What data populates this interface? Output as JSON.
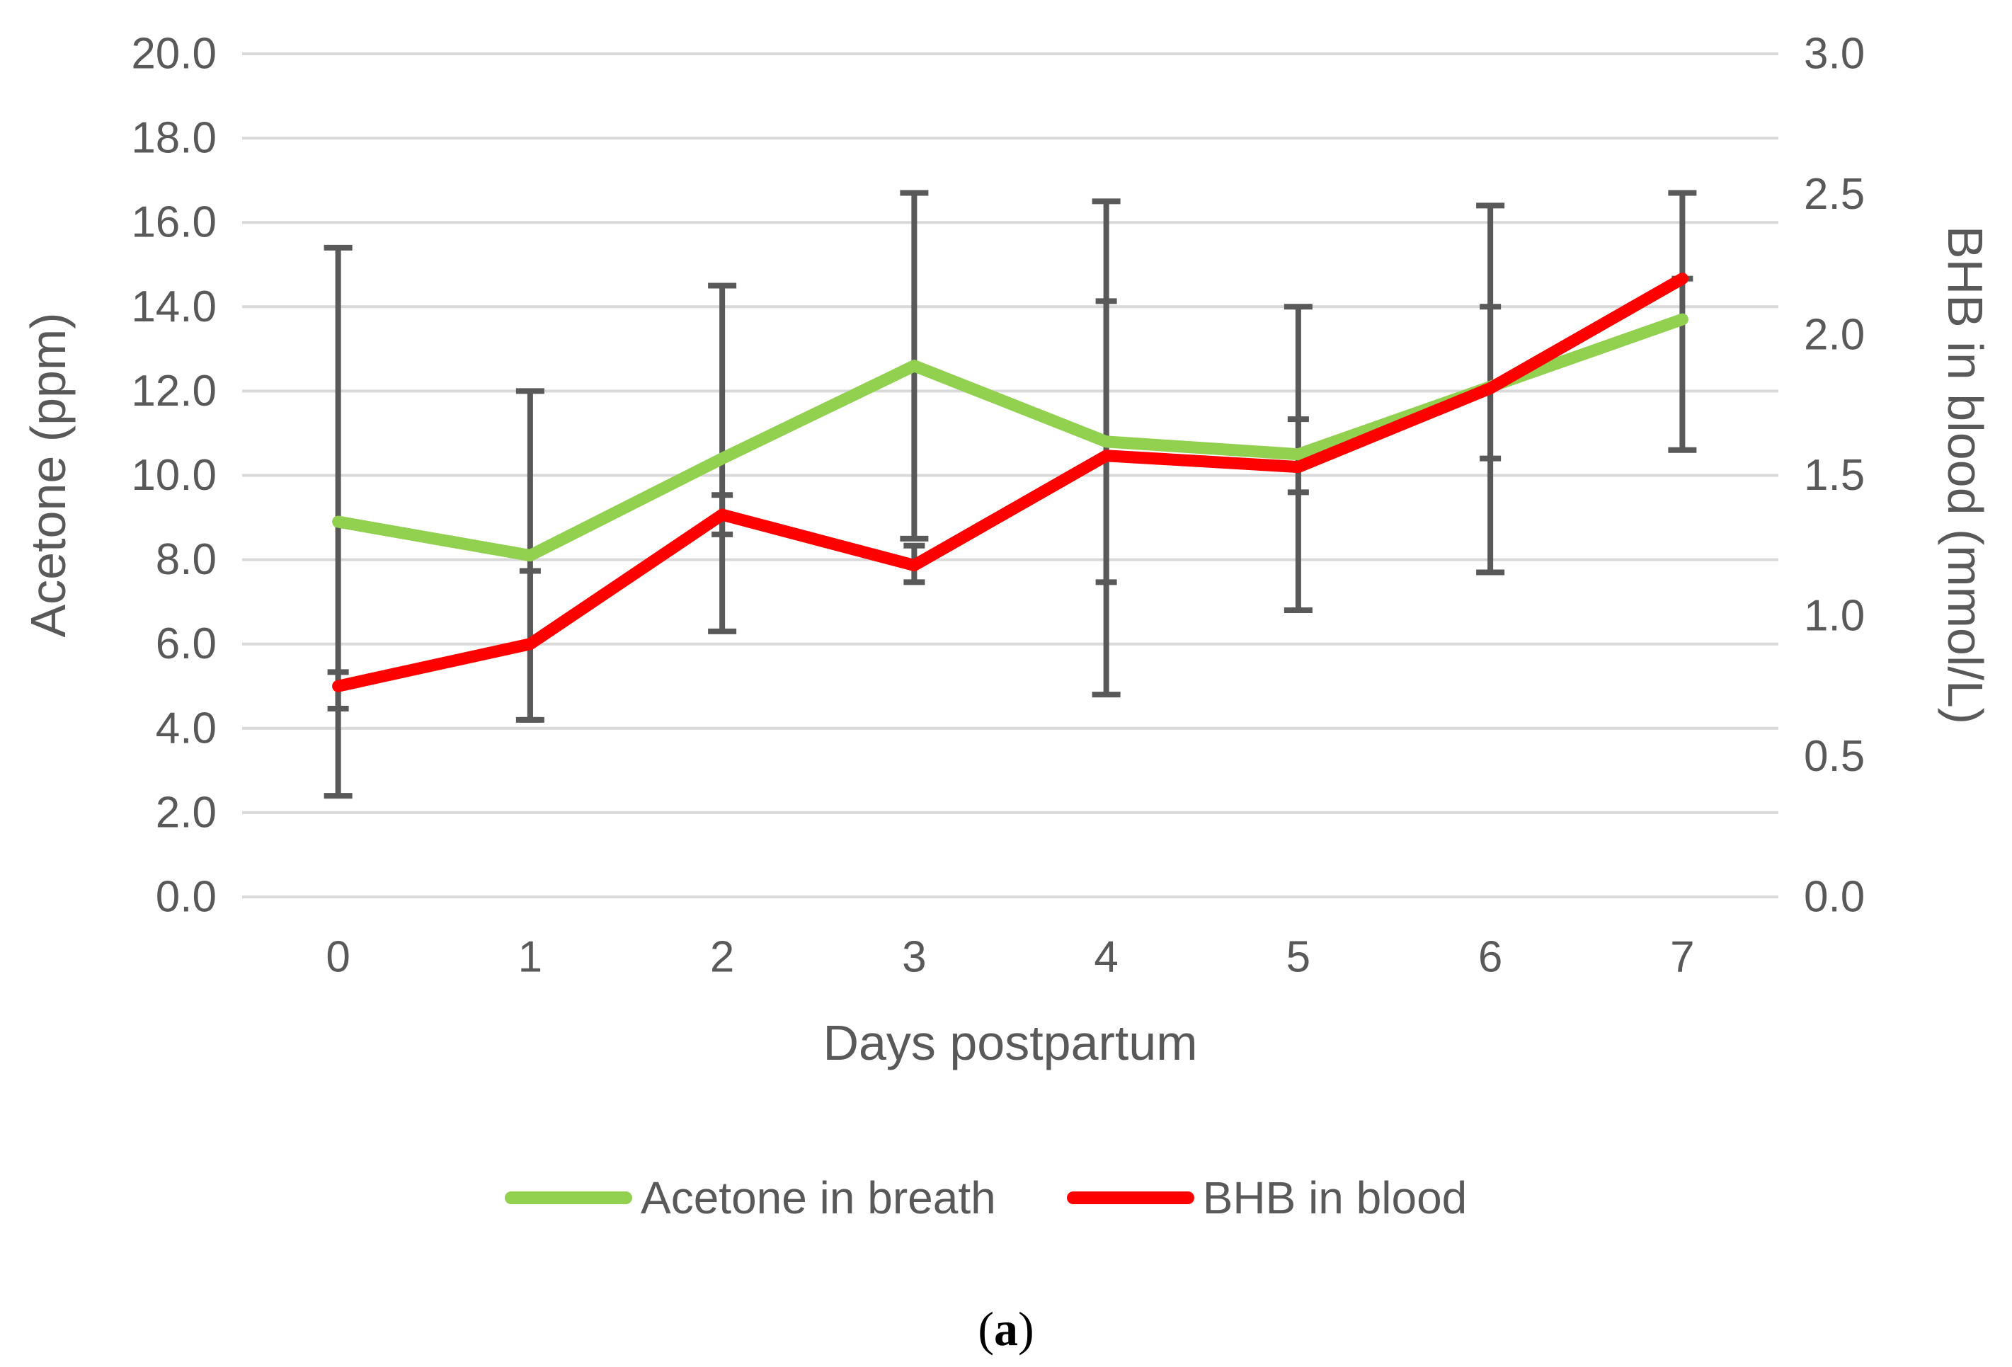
{
  "figure": {
    "caption_open": "(",
    "caption_letter": "a",
    "caption_close": ")",
    "background_color": "#FFFFFF",
    "text_color": "#595959"
  },
  "chart_data": {
    "type": "line",
    "title": "",
    "categories": [
      "0",
      "1",
      "2",
      "3",
      "4",
      "5",
      "6",
      "7"
    ],
    "xlabel": "Days postpartum",
    "axes": {
      "left": {
        "label": "Acetone (ppm)",
        "min": 0,
        "max": 20,
        "tick_step": 2,
        "tick_labels": [
          "0.0",
          "2.0",
          "4.0",
          "6.0",
          "8.0",
          "10.0",
          "12.0",
          "14.0",
          "16.0",
          "18.0",
          "20.0"
        ]
      },
      "right": {
        "label": "BHB in blood (mmol/L)",
        "min": 0,
        "max": 3,
        "tick_step": 0.5,
        "tick_labels": [
          "0.0",
          "0.5",
          "1.0",
          "1.5",
          "2.0",
          "2.5",
          "3.0"
        ]
      }
    },
    "series": [
      {
        "name": "Acetone in breath",
        "axis": "left",
        "color": "#92D050",
        "cap": "wide",
        "values": [
          8.9,
          8.1,
          10.4,
          12.6,
          10.8,
          10.5,
          12.1,
          13.7
        ],
        "error_low": [
          2.4,
          4.2,
          6.3,
          8.5,
          4.8,
          6.8,
          7.7,
          10.6
        ],
        "error_high": [
          15.4,
          12.0,
          14.5,
          16.7,
          16.5,
          14.0,
          16.4,
          16.7
        ]
      },
      {
        "name": "BHB in blood",
        "axis": "right",
        "color": "#FF0000",
        "cap": "narrow",
        "values": [
          0.75,
          0.9,
          1.36,
          1.18,
          1.57,
          1.53,
          1.81,
          2.2
        ],
        "error_low": [
          0.67,
          0.63,
          1.29,
          1.12,
          1.12,
          1.44,
          1.56,
          2.2
        ],
        "error_high": [
          0.8,
          1.16,
          1.43,
          1.25,
          2.12,
          1.7,
          2.1,
          2.2
        ]
      }
    ],
    "gridline_color": "#D9D9D9",
    "error_bar_color": "#595959",
    "grid": "horizontal-only",
    "legend_position": "bottom"
  }
}
